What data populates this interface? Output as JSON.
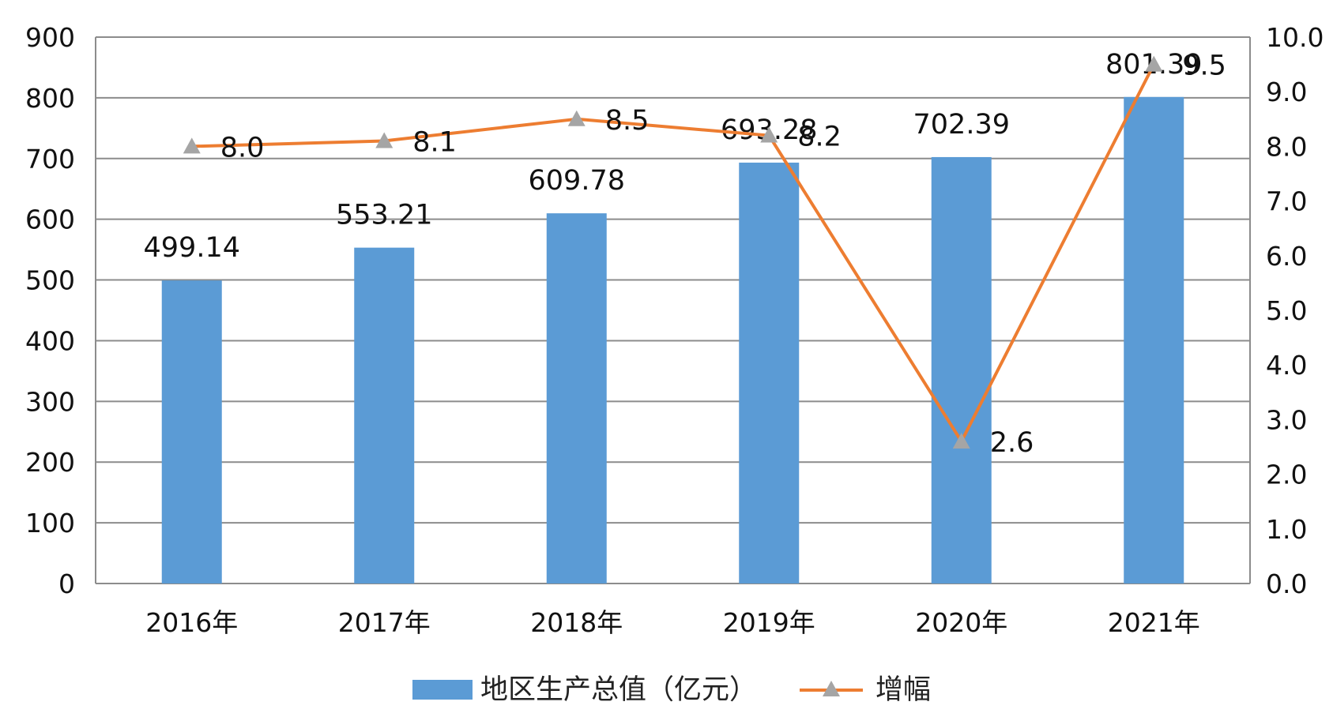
{
  "chart_data": {
    "type": "bar",
    "categories": [
      "2016年",
      "2017年",
      "2018年",
      "2019年",
      "2020年",
      "2021年"
    ],
    "series": [
      {
        "name": "地区生产总值（亿元）",
        "type": "bar",
        "axis": "left",
        "values": [
          499.14,
          553.21,
          609.78,
          693.28,
          702.39,
          801.39
        ],
        "labels": [
          "499.14",
          "553.21",
          "609.78",
          "693.28",
          "702.39",
          "801.39"
        ]
      },
      {
        "name": "增幅",
        "type": "line",
        "axis": "right",
        "marker": "triangle",
        "values": [
          8.0,
          8.1,
          8.5,
          8.2,
          2.6,
          9.5
        ],
        "labels": [
          "8.0",
          "8.1",
          "8.5",
          "8.2",
          "2.6",
          "9.5"
        ]
      }
    ],
    "y_left": {
      "ylim": [
        0,
        900
      ],
      "ticks": [
        "0",
        "100",
        "200",
        "300",
        "400",
        "500",
        "600",
        "700",
        "800",
        "900"
      ]
    },
    "y_right": {
      "ylim": [
        0,
        10
      ],
      "ticks": [
        "0.0",
        "1.0",
        "2.0",
        "3.0",
        "4.0",
        "5.0",
        "6.0",
        "7.0",
        "8.0",
        "9.0",
        "10.0"
      ]
    },
    "grid": true,
    "legend": "bottom-center",
    "colors": {
      "bar": "#5b9bd5",
      "line": "#ed7d31",
      "marker": "#a5a5a5",
      "grid": "#8c8c8c"
    }
  }
}
